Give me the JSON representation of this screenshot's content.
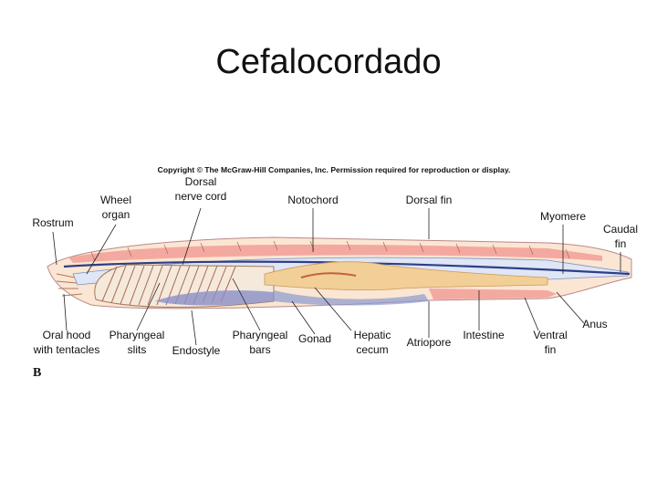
{
  "title": "Cefalocordado",
  "copyright": "Copyright © The McGraw-Hill Companies, Inc. Permission required for reproduction or display.",
  "labels": [
    {
      "lines": [
        "Dorsal",
        "nerve cord"
      ]
    },
    {
      "lines": [
        "Wheel",
        "organ"
      ]
    },
    {
      "lines": [
        "Notochord"
      ]
    },
    {
      "lines": [
        "Dorsal fin"
      ]
    },
    {
      "lines": [
        "Myomere"
      ]
    },
    {
      "lines": [
        "Rostrum"
      ]
    },
    {
      "lines": [
        "Caudal",
        "fin"
      ]
    },
    {
      "lines": [
        "Oral hood",
        "with tentacles"
      ]
    },
    {
      "lines": [
        "Pharyngeal",
        "slits"
      ]
    },
    {
      "lines": [
        "Endostyle"
      ]
    },
    {
      "lines": [
        "Pharyngeal",
        "bars"
      ]
    },
    {
      "lines": [
        "Gonad"
      ]
    },
    {
      "lines": [
        "Hepatic",
        "cecum"
      ]
    },
    {
      "lines": [
        "Atriopore"
      ]
    },
    {
      "lines": [
        "Intestine"
      ]
    },
    {
      "lines": [
        "Ventral",
        "fin"
      ]
    },
    {
      "lines": [
        "Anus"
      ]
    }
  ],
  "panel": "B"
}
